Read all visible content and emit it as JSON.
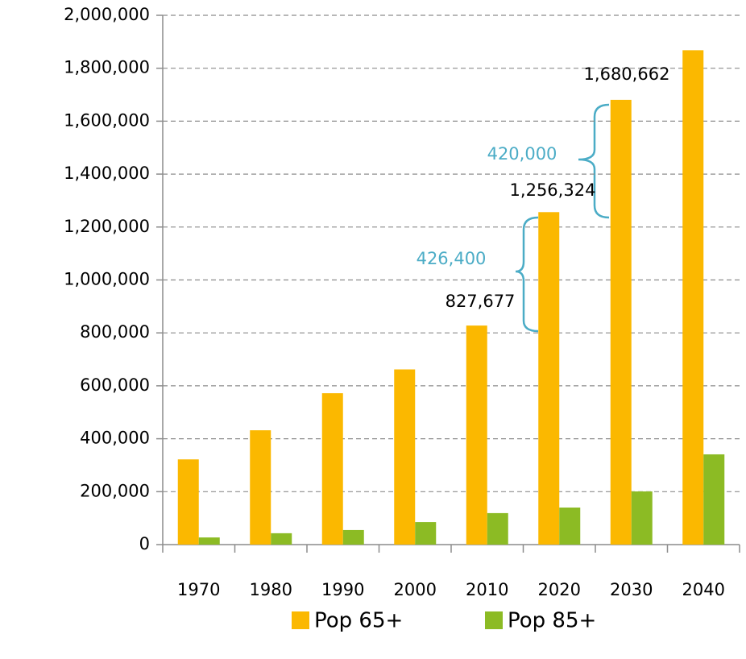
{
  "chart_data": {
    "type": "bar",
    "categories": [
      "1970",
      "1980",
      "1990",
      "2000",
      "2010",
      "2020",
      "2030",
      "2040"
    ],
    "series": [
      {
        "name": "Pop 65+",
        "color": "#fbb800",
        "values": [
          322000,
          432000,
          572000,
          662000,
          827677,
          1256324,
          1680662,
          1868000
        ],
        "value_labels": [
          null,
          null,
          null,
          null,
          "827,677",
          "1,256,324",
          "1,680,662",
          null
        ]
      },
      {
        "name": "Pop 85+",
        "color": "#8cbb24",
        "values": [
          27000,
          43000,
          55000,
          85000,
          119000,
          140000,
          201000,
          341000
        ]
      }
    ],
    "ylim": [
      0,
      2000000
    ],
    "yticks": [
      0,
      {
        "value": 200000,
        "label": "200,000"
      },
      {
        "value": 400000,
        "label": "400,000"
      },
      {
        "value": 600000,
        "label": "600,000"
      },
      {
        "value": 800000,
        "label": "800,000"
      },
      {
        "value": 1000000,
        "label": "1,000,000"
      },
      {
        "value": 1200000,
        "label": "1,200,000"
      },
      {
        "value": 1400000,
        "label": "1,400,000"
      },
      {
        "value": 1600000,
        "label": "1,600,000"
      },
      {
        "value": 1800000,
        "label": "1,800,000"
      },
      {
        "value": 2000000,
        "label": "2,000,000"
      }
    ],
    "grid": true,
    "legend": "bottom",
    "annotations": [
      "426,400",
      "420,000"
    ],
    "annotation_color": "#4bacc6"
  }
}
